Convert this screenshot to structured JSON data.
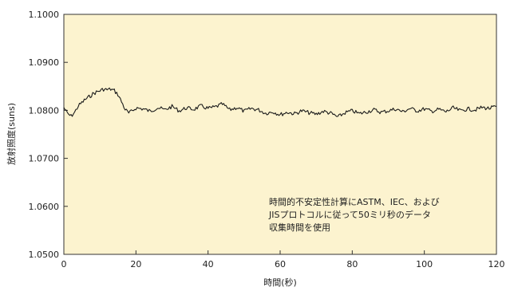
{
  "chart_data": {
    "type": "line",
    "title": "",
    "xlabel": "時間(秒)",
    "ylabel": "放射照度(suns)",
    "xlim": [
      0,
      120
    ],
    "ylim": [
      1.05,
      1.1
    ],
    "x_ticks": [
      "0",
      "20",
      "40",
      "60",
      "80",
      "100",
      "120"
    ],
    "y_ticks": [
      "1.0500",
      "1.0600",
      "1.0700",
      "1.0800",
      "1.0900",
      "1.1000"
    ],
    "grid": false,
    "background_color": "#fcf3cf",
    "line_color": "#1a1a1a",
    "annotation": [
      "時間的不安定性計算にASTM、IEC、および",
      "JISプロトコルに従って50ミリ秒のデータ",
      "収集時間を使用"
    ],
    "series": [
      {
        "x": [
          0,
          1,
          2,
          3,
          4,
          5,
          6,
          7,
          8,
          9,
          10,
          11,
          12,
          13,
          14,
          15,
          16,
          17,
          18,
          19,
          20,
          22,
          24,
          26,
          28,
          30,
          32,
          34,
          36,
          38,
          40,
          42,
          44,
          46,
          48,
          50,
          52,
          54,
          56,
          58,
          60,
          62,
          64,
          66,
          68,
          70,
          72,
          74,
          76,
          78,
          80,
          82,
          84,
          86,
          88,
          90,
          92,
          94,
          96,
          98,
          100,
          102,
          104,
          106,
          108,
          110,
          112,
          114,
          116,
          118,
          120
        ],
        "values": [
          1.0806,
          1.0793,
          1.0788,
          1.0796,
          1.0809,
          1.0816,
          1.0823,
          1.0828,
          1.0834,
          1.0838,
          1.0841,
          1.0844,
          1.0843,
          1.0844,
          1.0841,
          1.0833,
          1.0818,
          1.0802,
          1.0794,
          1.0799,
          1.0805,
          1.0803,
          1.0798,
          1.0806,
          1.0801,
          1.0808,
          1.0799,
          1.0805,
          1.0802,
          1.0809,
          1.0804,
          1.0807,
          1.0813,
          1.0801,
          1.0806,
          1.0798,
          1.0804,
          1.0801,
          1.0794,
          1.0797,
          1.0791,
          1.0796,
          1.0793,
          1.0799,
          1.0795,
          1.0792,
          1.0798,
          1.0794,
          1.0786,
          1.0795,
          1.0799,
          1.0793,
          1.0797,
          1.0801,
          1.0796,
          1.0799,
          1.0803,
          1.0797,
          1.0804,
          1.0799,
          1.0803,
          1.0798,
          1.0802,
          1.0797,
          1.0805,
          1.0799,
          1.0803,
          1.0801,
          1.0806,
          1.0804,
          1.0808
        ]
      }
    ]
  }
}
